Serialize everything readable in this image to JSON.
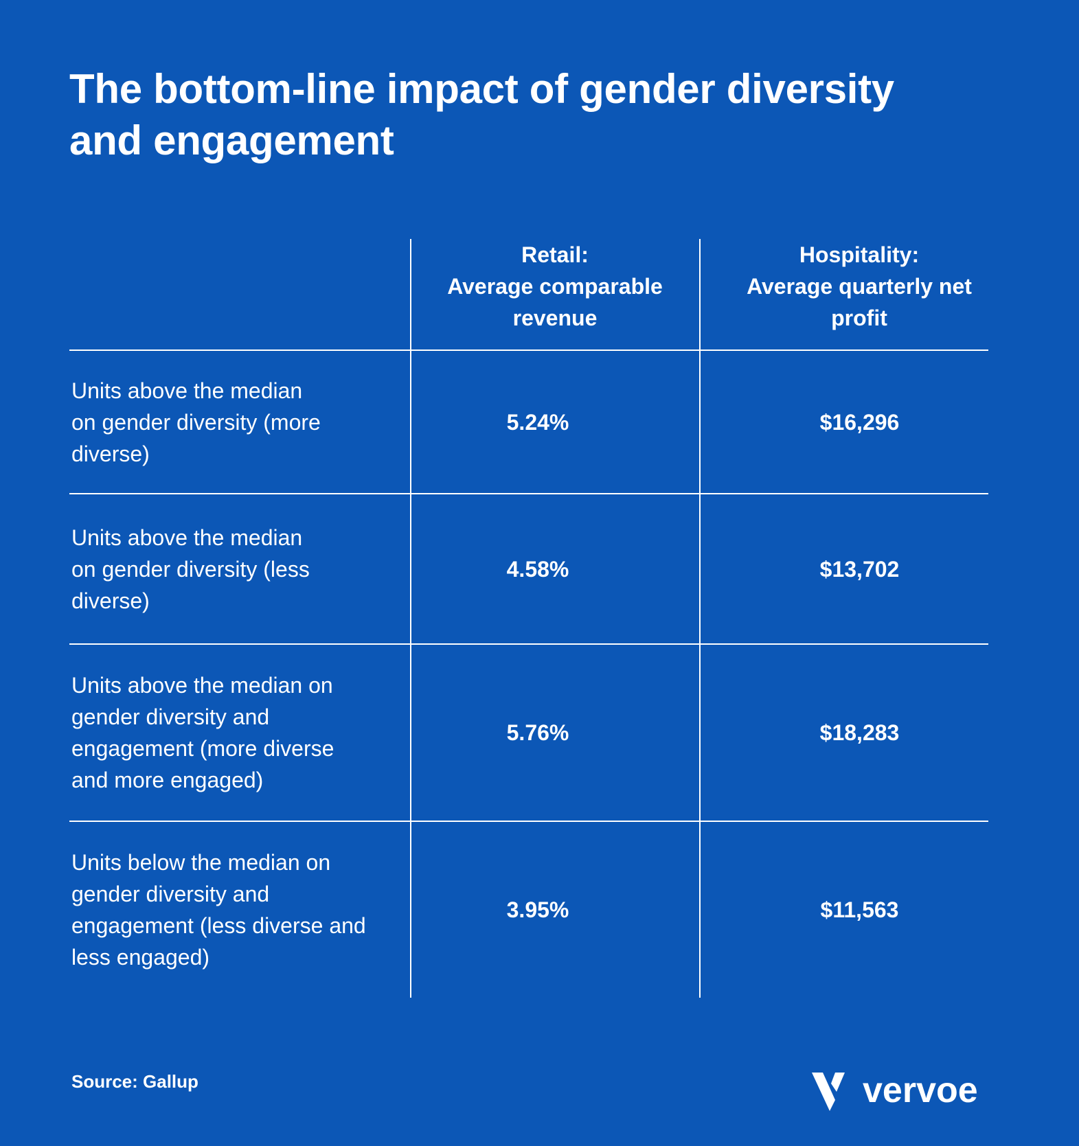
{
  "title": "The bottom-line impact of gender diversity and engagement",
  "chart_data": {
    "type": "table",
    "columns": [
      {
        "label_line1": "Retail:",
        "label_line2": "Average comparable revenue"
      },
      {
        "label_line1": "Hospitality:",
        "label_line2": "Average quarterly net profit"
      }
    ],
    "rows": [
      {
        "label": "Units above the median on gender diversity (more diverse)",
        "retail": "5.24%",
        "hospitality": "$16,296"
      },
      {
        "label": "Units above the median on gender diversity (less diverse)",
        "retail": "4.58%",
        "hospitality": "$13,702"
      },
      {
        "label": "Units above the median on gender diversity and engagement (more diverse and more engaged)",
        "retail": "5.76%",
        "hospitality": "$18,283"
      },
      {
        "label": "Units below the median on gender diversity and engagement (less diverse and less engaged)",
        "retail": "3.95%",
        "hospitality": "$11,563"
      }
    ]
  },
  "source": "Source: Gallup",
  "logo": {
    "text": "vervoe",
    "icon": "vervoe-v-icon"
  },
  "colors": {
    "background": "#0c57b6",
    "text": "#ffffff"
  }
}
